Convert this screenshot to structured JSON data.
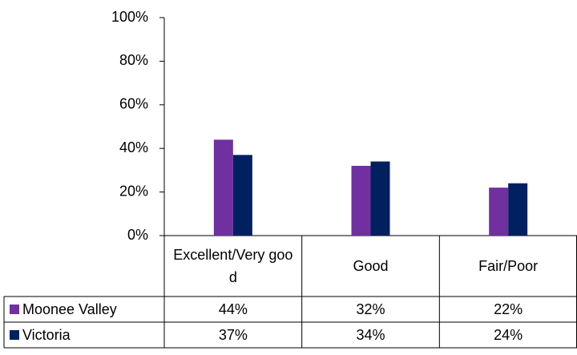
{
  "chart_data": {
    "type": "bar",
    "categories": [
      "Excellent/Very good",
      "Good",
      "Fair/Poor"
    ],
    "series": [
      {
        "name": "Moonee Valley",
        "color": "#7030a0",
        "values": [
          44,
          32,
          22
        ],
        "value_labels": [
          "44%",
          "32%",
          "22%"
        ]
      },
      {
        "name": "Victoria",
        "color": "#002060",
        "values": [
          37,
          34,
          24
        ],
        "value_labels": [
          "37%",
          "34%",
          "24%"
        ]
      }
    ],
    "ylim": [
      0,
      100
    ],
    "yticks": [
      {
        "value": 0,
        "label": "0%"
      },
      {
        "value": 20,
        "label": "20%"
      },
      {
        "value": 40,
        "label": "40%"
      },
      {
        "value": 60,
        "label": "60%"
      },
      {
        "value": 80,
        "label": "80%"
      },
      {
        "value": 100,
        "label": "100%"
      }
    ]
  }
}
